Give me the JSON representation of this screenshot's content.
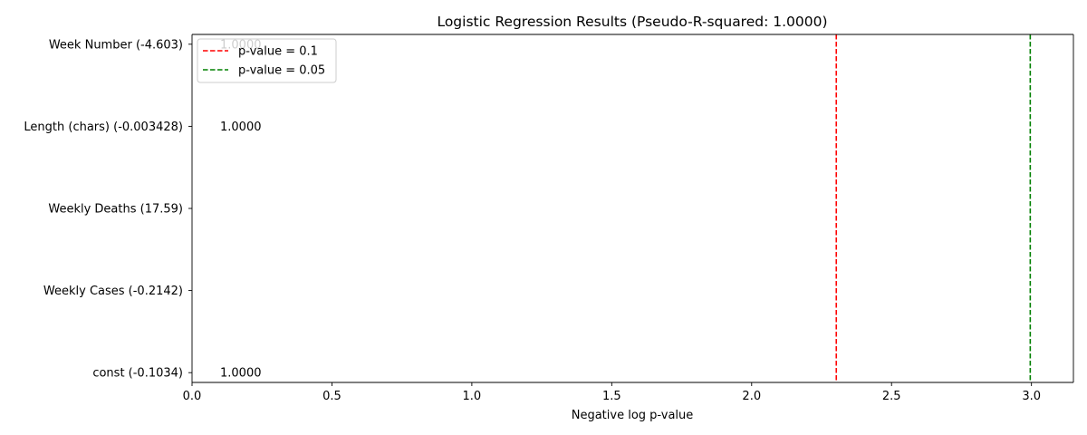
{
  "chart_data": {
    "type": "bar",
    "orientation": "horizontal",
    "title": "Logistic Regression Results (Pseudo-R-squared: 1.0000)",
    "xlabel": "Negative log p-value",
    "ylabel": "",
    "xlim": [
      0,
      3.15
    ],
    "xticks": [
      0.0,
      0.5,
      1.0,
      1.5,
      2.0,
      2.5,
      3.0
    ],
    "xtick_labels": [
      "0.0",
      "0.5",
      "1.0",
      "1.5",
      "2.0",
      "2.5",
      "3.0"
    ],
    "categories": [
      "const (-0.1034)",
      "Weekly Cases (-0.2142)",
      "Weekly Deaths (17.59)",
      "Length (chars) (-0.003428)",
      "Week Number (-4.603)"
    ],
    "values": [
      0,
      0,
      0,
      0,
      0
    ],
    "data_labels": [
      "1.0000",
      "",
      "",
      "1.0000",
      "1.0000"
    ],
    "reference_lines": [
      {
        "label": "p-value = 0.1",
        "x": 2.302585,
        "color": "#ff0000",
        "style": "dashed"
      },
      {
        "label": "p-value = 0.05",
        "x": 2.995732,
        "color": "#008000",
        "style": "dashed"
      }
    ],
    "legend_position": "upper left",
    "grid": false
  }
}
